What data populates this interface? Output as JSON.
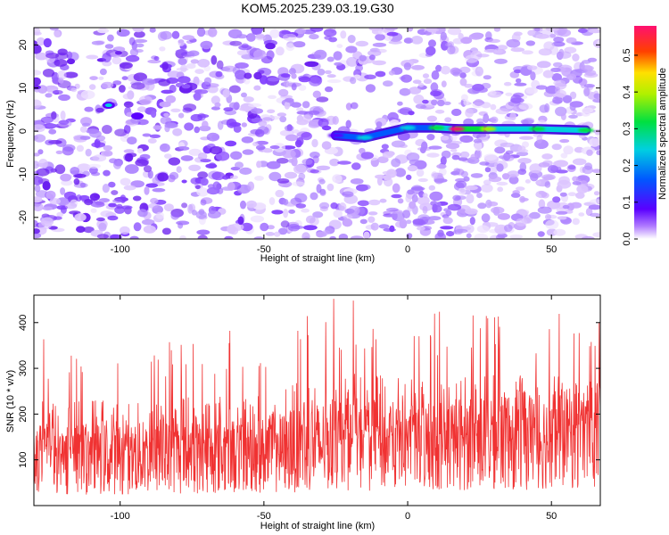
{
  "title": "KOM5.2025.239.03.19.G30",
  "chart_data": [
    {
      "type": "heatmap",
      "xlabel": "Height of straight line (km)",
      "ylabel": "Frequency (Hz)",
      "xlim": [
        -130,
        67
      ],
      "ylim": [
        -25,
        24
      ],
      "x_ticks": [
        -100,
        -50,
        0,
        50
      ],
      "x_tick_labels": [
        "-100",
        "-50",
        "0",
        "50"
      ],
      "y_ticks": [
        -20,
        -10,
        0,
        10,
        20
      ],
      "y_tick_labels": [
        "-20",
        "-10",
        "0",
        "10",
        "20"
      ],
      "colorbar": {
        "label": "Normalized spectral amplitude",
        "range": [
          0.0,
          0.58
        ],
        "ticks": [
          0.0,
          0.1,
          0.2,
          0.3,
          0.4,
          0.5
        ],
        "tick_labels": [
          "0.0",
          "0.1",
          "0.2",
          "0.3",
          "0.4",
          "0.5"
        ]
      },
      "band": {
        "description_points": [
          {
            "x": -104,
            "y": 6,
            "amp": 0.17
          },
          {
            "x": -94,
            "y": 3.5,
            "amp": 0.08
          },
          {
            "x": -25,
            "y": -1,
            "amp": 0.08
          },
          {
            "x": -15,
            "y": -1.5,
            "amp": 0.2
          },
          {
            "x": 0,
            "y": 0.8,
            "amp": 0.22
          },
          {
            "x": 10,
            "y": 0.8,
            "amp": 0.25
          },
          {
            "x": 17,
            "y": 0.5,
            "amp": 0.52
          },
          {
            "x": 28,
            "y": 0.5,
            "amp": 0.38
          },
          {
            "x": 45,
            "y": 0.5,
            "amp": 0.28
          },
          {
            "x": 62,
            "y": 0.2,
            "amp": 0.3
          }
        ]
      }
    },
    {
      "type": "line",
      "xlabel": "Height of straight line (km)",
      "ylabel": "SNR (10 * v/v)",
      "xlim": [
        -130,
        67
      ],
      "ylim": [
        0,
        460
      ],
      "x_ticks": [
        -100,
        -50,
        0,
        50
      ],
      "x_tick_labels": [
        "-100",
        "-50",
        "0",
        "50"
      ],
      "y_ticks": [
        100,
        200,
        300,
        400
      ],
      "y_tick_labels": [
        "100",
        "200",
        "300",
        "400"
      ],
      "color": "#f03232",
      "envelope": {
        "x": [
          -130,
          -100,
          -50,
          -25,
          0,
          25,
          50,
          67
        ],
        "mean": [
          120,
          120,
          130,
          160,
          150,
          165,
          170,
          175
        ],
        "peak": [
          370,
          370,
          390,
          455,
          440,
          430,
          440,
          420
        ]
      }
    }
  ]
}
